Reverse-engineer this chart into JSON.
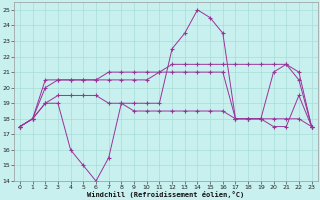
{
  "background_color": "#c8f0ee",
  "grid_color": "#a8dcd8",
  "line_color": "#993399",
  "xlabel": "Windchill (Refroidissement éolien,°C)",
  "xlim_min": -0.5,
  "xlim_max": 23.5,
  "ylim_min": 14,
  "ylim_max": 25.5,
  "xticks": [
    0,
    1,
    2,
    3,
    4,
    5,
    6,
    7,
    8,
    9,
    10,
    11,
    12,
    13,
    14,
    15,
    16,
    17,
    18,
    19,
    20,
    21,
    22,
    23
  ],
  "yticks": [
    14,
    15,
    16,
    17,
    18,
    19,
    20,
    21,
    22,
    23,
    24,
    25
  ],
  "line1_y": [
    17.5,
    18.0,
    19.0,
    19.0,
    16.0,
    15.0,
    14.0,
    15.5,
    19.0,
    19.0,
    19.0,
    19.0,
    22.5,
    23.5,
    25.0,
    24.5,
    23.5,
    18.0,
    18.0,
    18.0,
    17.5,
    17.5,
    19.5,
    17.5
  ],
  "line2_y": [
    17.5,
    18.0,
    20.5,
    20.5,
    20.5,
    20.5,
    20.5,
    20.5,
    20.5,
    20.5,
    20.5,
    21.0,
    21.5,
    21.5,
    21.5,
    21.5,
    21.5,
    21.5,
    21.5,
    21.5,
    21.5,
    21.5,
    20.5,
    17.5
  ],
  "line3_y": [
    17.5,
    18.0,
    20.0,
    20.5,
    20.5,
    20.5,
    20.5,
    21.0,
    21.0,
    21.0,
    21.0,
    21.0,
    21.0,
    21.0,
    21.0,
    21.0,
    21.0,
    18.0,
    18.0,
    18.0,
    21.0,
    21.5,
    21.0,
    17.5
  ],
  "line4_y": [
    17.5,
    18.0,
    19.0,
    19.5,
    19.5,
    19.5,
    19.5,
    19.0,
    19.0,
    18.5,
    18.5,
    18.5,
    18.5,
    18.5,
    18.5,
    18.5,
    18.5,
    18.0,
    18.0,
    18.0,
    18.0,
    18.0,
    18.0,
    17.5
  ]
}
